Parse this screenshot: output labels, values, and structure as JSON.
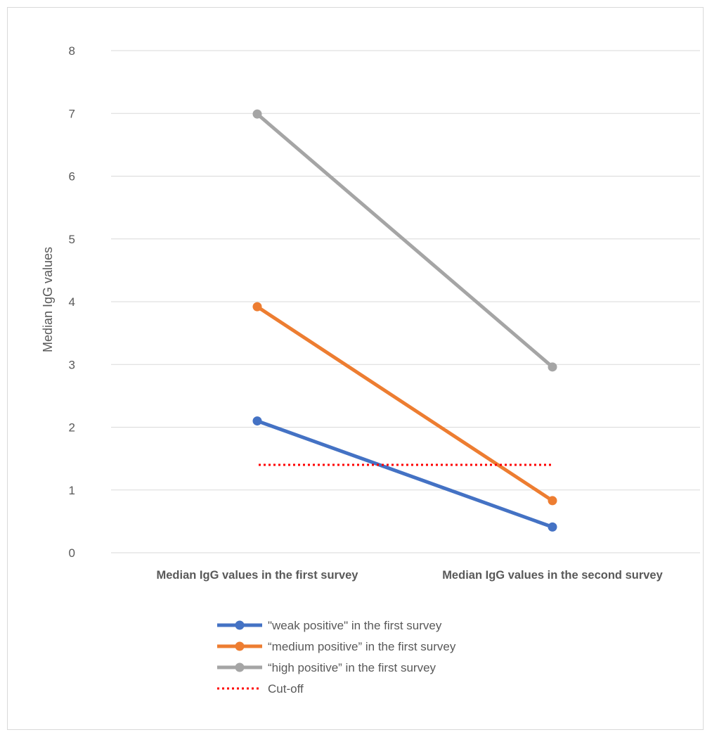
{
  "chart_data": {
    "type": "line",
    "title": "",
    "xlabel": "",
    "ylabel": "Median IgG values",
    "categories": [
      "Median IgG values in the first survey",
      "Median IgG values in the second survey"
    ],
    "ylim": [
      0,
      8
    ],
    "yticks": [
      "0",
      "1",
      "2",
      "3",
      "4",
      "5",
      "6",
      "7",
      "8"
    ],
    "grid": true,
    "legend_position": "bottom",
    "series": [
      {
        "name": "\"weak  positive\" in the first survey",
        "values": [
          2.1,
          0.41
        ],
        "color": "#4472C4",
        "markers": true
      },
      {
        "name": "“medium positive” in the first survey",
        "values": [
          3.92,
          0.83
        ],
        "color": "#ED7D31",
        "markers": true
      },
      {
        "name": "“high positive” in the first survey",
        "values": [
          6.99,
          2.96
        ],
        "color": "#A5A5A5",
        "markers": true
      },
      {
        "name": "Cut-off",
        "values": [
          1.4,
          1.4
        ],
        "color": "#FF0000",
        "markers": false,
        "style": "dotted"
      }
    ]
  }
}
